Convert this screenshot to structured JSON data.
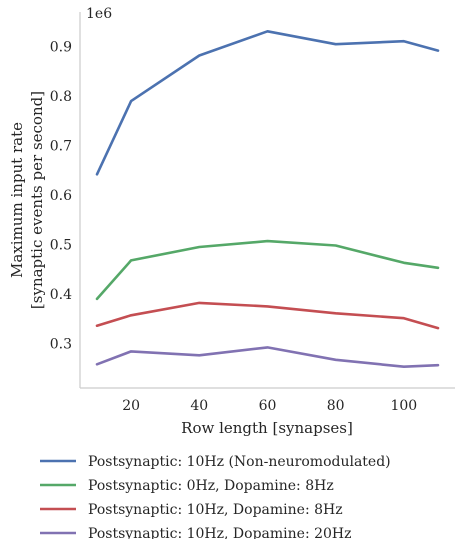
{
  "chart_data": {
    "type": "line",
    "xlabel": "Row length [synapses]",
    "ylabel_lines": [
      "Maximum input rate",
      "[synaptic events per second]"
    ],
    "y_multiplier": "1e6",
    "x": [
      10,
      20,
      40,
      60,
      80,
      100,
      110
    ],
    "xlim": [
      5,
      115
    ],
    "ylim": [
      0.21,
      0.97
    ],
    "x_ticks": [
      20,
      40,
      60,
      80,
      100
    ],
    "x_tick_labels": [
      "20",
      "40",
      "60",
      "80",
      "100"
    ],
    "y_ticks": [
      0.3,
      0.4,
      0.5,
      0.6,
      0.7,
      0.8,
      0.9
    ],
    "y_tick_labels": [
      "0.3",
      "0.4",
      "0.5",
      "0.6",
      "0.7",
      "0.8",
      "0.9"
    ],
    "grid": false,
    "legend_position": "bottom",
    "series": [
      {
        "name": "Postsynaptic: 10Hz (Non-neuromodulated)",
        "color": "#4c72b0",
        "values": [
          0.642,
          0.79,
          0.882,
          0.931,
          0.905,
          0.911,
          0.892
        ]
      },
      {
        "name": "Postsynaptic: 0Hz, Dopamine: 8Hz",
        "color": "#55a868",
        "values": [
          0.39,
          0.468,
          0.495,
          0.507,
          0.498,
          0.463,
          0.453
        ]
      },
      {
        "name": "Postsynaptic: 10Hz, Dopamine: 8Hz",
        "color": "#c44e52",
        "values": [
          0.336,
          0.357,
          0.382,
          0.375,
          0.361,
          0.351,
          0.331
        ]
      },
      {
        "name": "Postsynaptic: 10Hz, Dopamine: 20Hz",
        "color": "#8172b2",
        "values": [
          0.258,
          0.284,
          0.276,
          0.292,
          0.267,
          0.253,
          0.256
        ]
      }
    ]
  }
}
